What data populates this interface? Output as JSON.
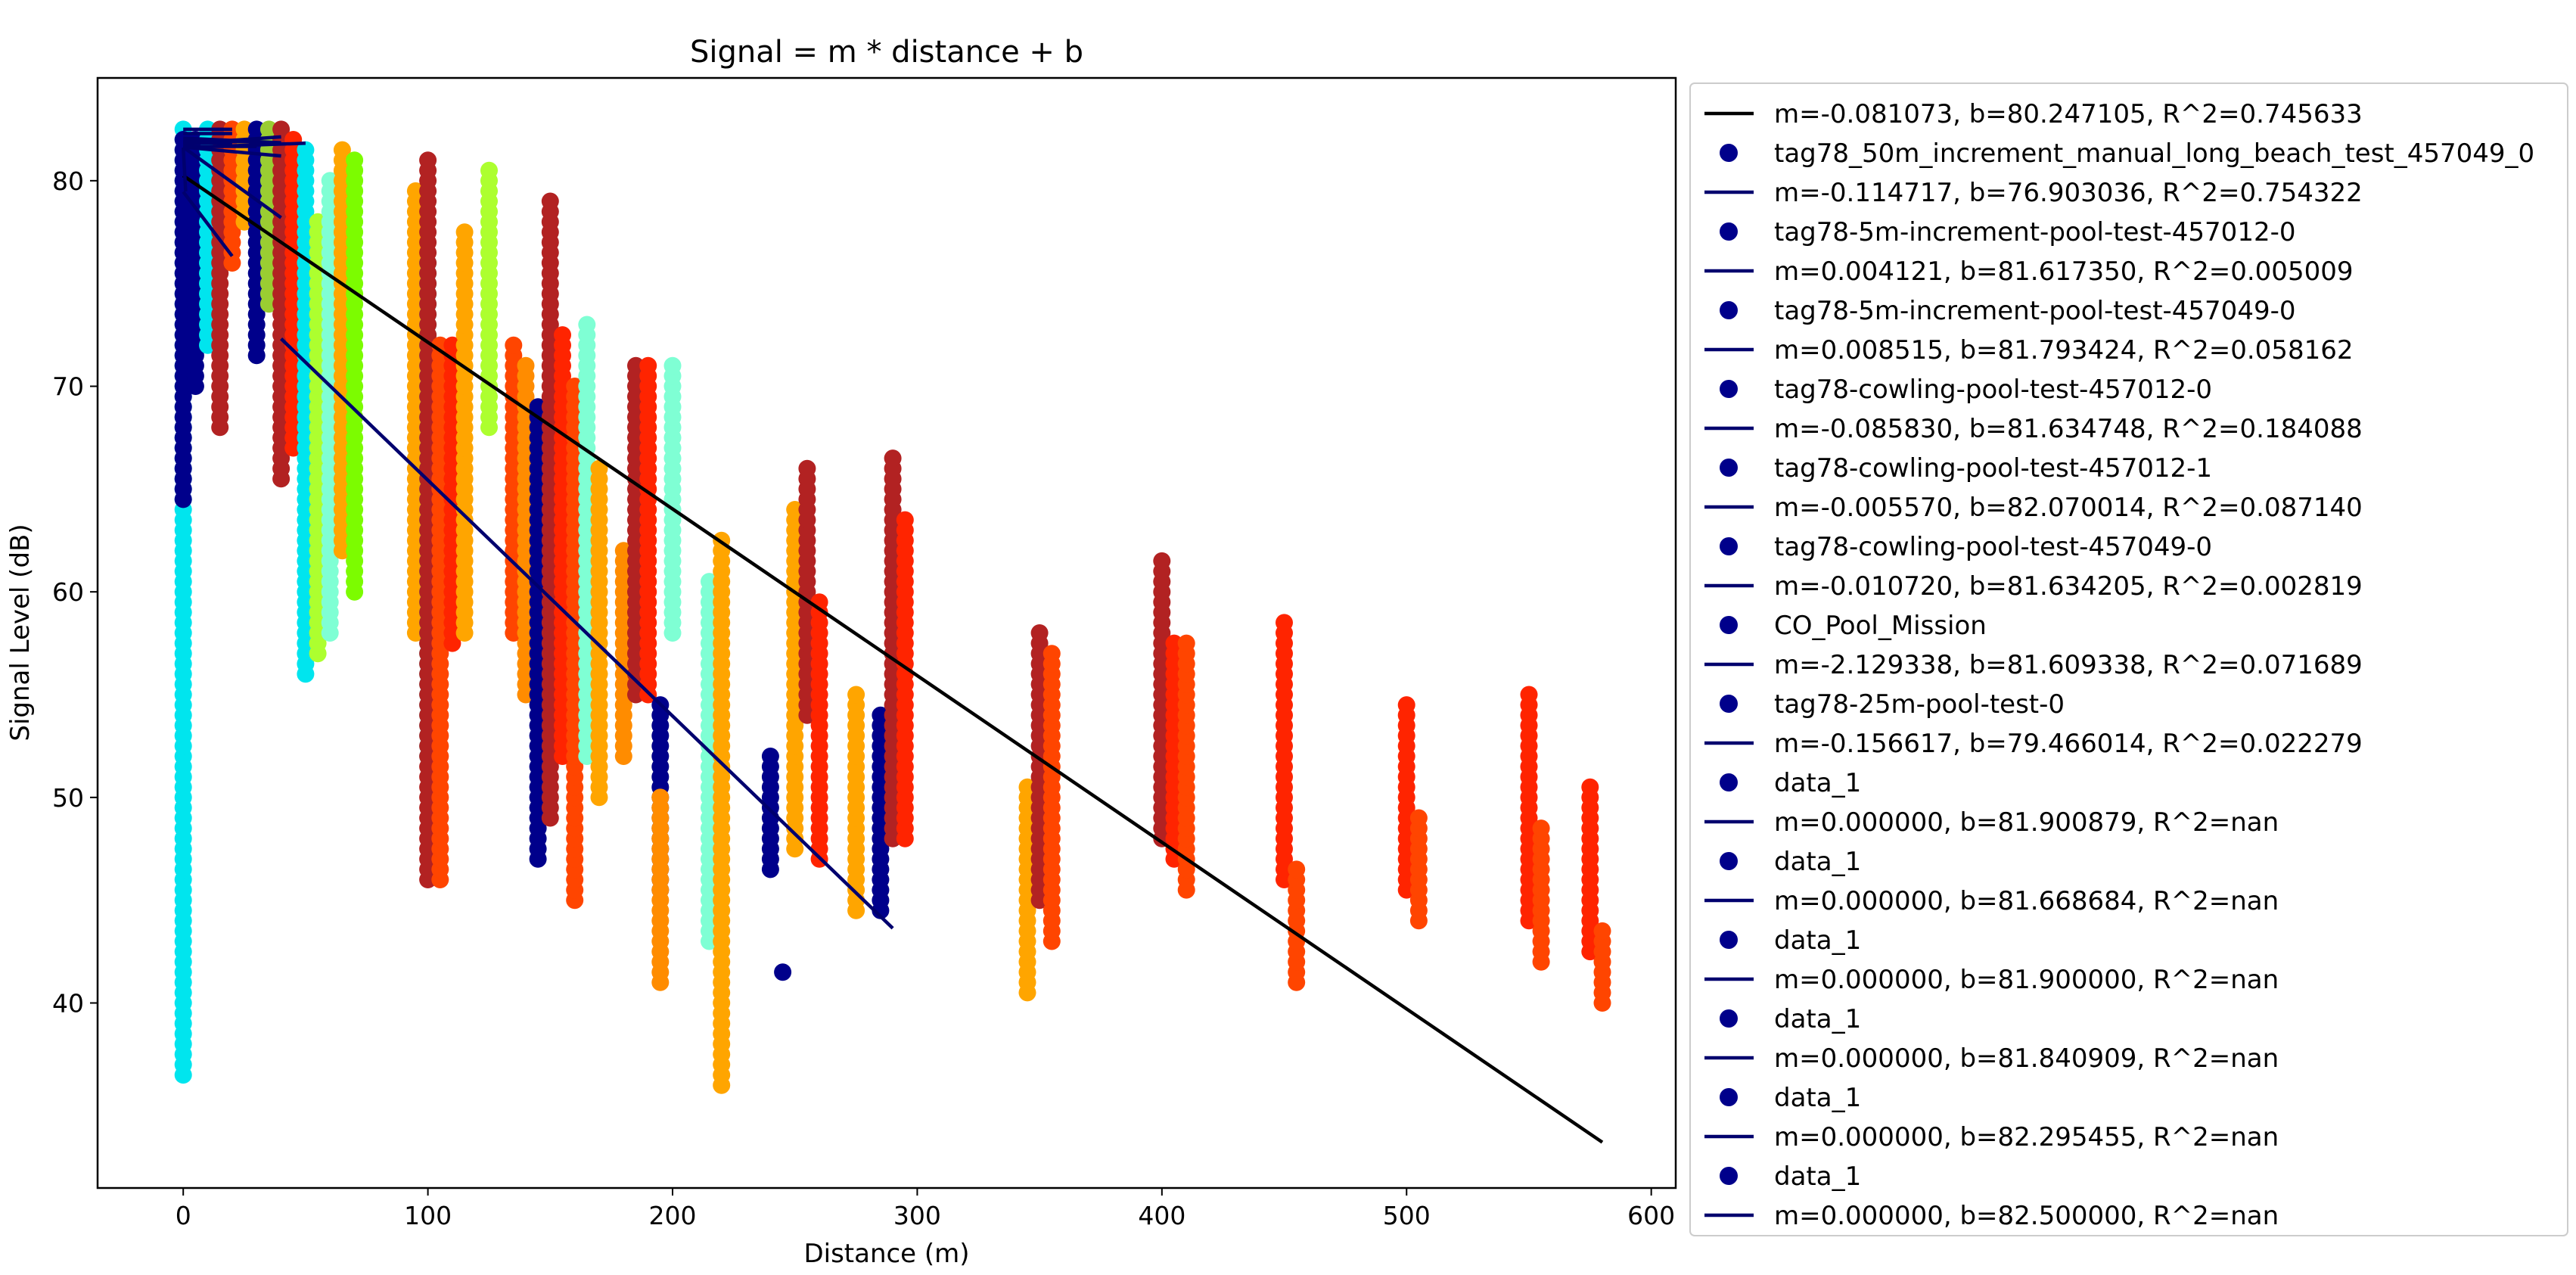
{
  "chart_data": {
    "type": "scatter",
    "title": "Signal = m * distance + b",
    "xlabel": "Distance (m)",
    "ylabel": "Signal Level (dB)",
    "xlim": [
      -35,
      610
    ],
    "ylim": [
      31,
      85
    ],
    "xticks": [
      0,
      100,
      200,
      300,
      400,
      500,
      600
    ],
    "yticks": [
      40,
      50,
      60,
      70,
      80
    ],
    "grid": false,
    "legend_position": "outside-right",
    "legend": [
      {
        "kind": "line",
        "label": "m=-0.081073, b=80.247105, R^2=0.745633",
        "color": "#000000"
      },
      {
        "kind": "point",
        "label": "tag78_50m_increment_manual_long_beach_test_457049_0",
        "color": "#00008b"
      },
      {
        "kind": "line",
        "label": "m=-0.114717, b=76.903036, R^2=0.754322",
        "color": "#00006e"
      },
      {
        "kind": "point",
        "label": "tag78-5m-increment-pool-test-457012-0",
        "color": "#00008b"
      },
      {
        "kind": "line",
        "label": "m=0.004121, b=81.617350, R^2=0.005009",
        "color": "#00006e"
      },
      {
        "kind": "point",
        "label": "tag78-5m-increment-pool-test-457049-0",
        "color": "#00008b"
      },
      {
        "kind": "line",
        "label": "m=0.008515, b=81.793424, R^2=0.058162",
        "color": "#00006e"
      },
      {
        "kind": "point",
        "label": "tag78-cowling-pool-test-457012-0",
        "color": "#00008b"
      },
      {
        "kind": "line",
        "label": "m=-0.085830, b=81.634748, R^2=0.184088",
        "color": "#00006e"
      },
      {
        "kind": "point",
        "label": "tag78-cowling-pool-test-457012-1",
        "color": "#00008b"
      },
      {
        "kind": "line",
        "label": "m=-0.005570, b=82.070014, R^2=0.087140",
        "color": "#00006e"
      },
      {
        "kind": "point",
        "label": "tag78-cowling-pool-test-457049-0",
        "color": "#00008b"
      },
      {
        "kind": "line",
        "label": "m=-0.010720, b=81.634205, R^2=0.002819",
        "color": "#00006e"
      },
      {
        "kind": "point",
        "label": "CO_Pool_Mission",
        "color": "#00008b"
      },
      {
        "kind": "line",
        "label": "m=-2.129338, b=81.609338, R^2=0.071689",
        "color": "#00006e"
      },
      {
        "kind": "point",
        "label": "tag78-25m-pool-test-0",
        "color": "#00008b"
      },
      {
        "kind": "line",
        "label": "m=-0.156617, b=79.466014, R^2=0.022279",
        "color": "#00006e"
      },
      {
        "kind": "point",
        "label": "data_1",
        "color": "#00008b"
      },
      {
        "kind": "line",
        "label": "m=0.000000, b=81.900879, R^2=nan",
        "color": "#00006e"
      },
      {
        "kind": "point",
        "label": "data_1",
        "color": "#00008b"
      },
      {
        "kind": "line",
        "label": "m=0.000000, b=81.668684, R^2=nan",
        "color": "#00006e"
      },
      {
        "kind": "point",
        "label": "data_1",
        "color": "#00008b"
      },
      {
        "kind": "line",
        "label": "m=0.000000, b=81.900000, R^2=nan",
        "color": "#00006e"
      },
      {
        "kind": "point",
        "label": "data_1",
        "color": "#00008b"
      },
      {
        "kind": "line",
        "label": "m=0.000000, b=81.840909, R^2=nan",
        "color": "#00006e"
      },
      {
        "kind": "point",
        "label": "data_1",
        "color": "#00008b"
      },
      {
        "kind": "line",
        "label": "m=0.000000, b=82.295455, R^2=nan",
        "color": "#00006e"
      },
      {
        "kind": "point",
        "label": "data_1",
        "color": "#00008b"
      },
      {
        "kind": "line",
        "label": "m=0.000000, b=82.500000, R^2=nan",
        "color": "#00006e"
      }
    ],
    "fit_lines": [
      {
        "m": -0.081073,
        "b": 80.247105,
        "x": [
          0,
          580
        ],
        "color": "#000000"
      },
      {
        "m": -0.114717,
        "b": 76.903036,
        "x": [
          40,
          290
        ],
        "color": "#00006e"
      },
      {
        "m": 0.004121,
        "b": 81.61735,
        "x": [
          0,
          50
        ],
        "color": "#00006e"
      },
      {
        "m": 0.008515,
        "b": 81.793424,
        "x": [
          0,
          40
        ],
        "color": "#00006e"
      },
      {
        "m": -0.08583,
        "b": 81.634748,
        "x": [
          0,
          40
        ],
        "color": "#00006e"
      },
      {
        "m": -0.00557,
        "b": 82.070014,
        "x": [
          0,
          40
        ],
        "color": "#00006e"
      },
      {
        "m": -0.01072,
        "b": 81.634205,
        "x": [
          0,
          40
        ],
        "color": "#00006e"
      },
      {
        "m": -2.129338,
        "b": 81.609338,
        "x": [
          0,
          1
        ],
        "color": "#00006e"
      },
      {
        "m": -0.156617,
        "b": 79.466014,
        "x": [
          0,
          20
        ],
        "color": "#00006e"
      },
      {
        "m": 0,
        "b": 81.900879,
        "x": [
          0,
          30
        ],
        "color": "#00006e"
      },
      {
        "m": 0,
        "b": 81.668684,
        "x": [
          0,
          30
        ],
        "color": "#00006e"
      },
      {
        "m": 0,
        "b": 81.9,
        "x": [
          0,
          20
        ],
        "color": "#00006e"
      },
      {
        "m": 0,
        "b": 81.840909,
        "x": [
          0,
          20
        ],
        "color": "#00006e"
      },
      {
        "m": 0,
        "b": 82.295455,
        "x": [
          0,
          20
        ],
        "color": "#00006e"
      },
      {
        "m": 0,
        "b": 82.5,
        "x": [
          0,
          20
        ],
        "color": "#00006e"
      }
    ],
    "point_columns": [
      {
        "x": 0,
        "y": [
          36.5,
          82.5
        ],
        "color": "#00e5ee"
      },
      {
        "x": 0,
        "y": [
          64.5,
          82
        ],
        "color": "#00008b"
      },
      {
        "x": 5,
        "y": [
          70,
          82
        ],
        "color": "#00008b"
      },
      {
        "x": 10,
        "y": [
          72,
          82.5
        ],
        "color": "#00e5ee"
      },
      {
        "x": 15,
        "y": [
          68,
          82.5
        ],
        "color": "#b22222"
      },
      {
        "x": 20,
        "y": [
          76,
          82.5
        ],
        "color": "#ff4500"
      },
      {
        "x": 25,
        "y": [
          78,
          82.5
        ],
        "color": "#ffa500"
      },
      {
        "x": 30,
        "y": [
          71.5,
          82.5
        ],
        "color": "#00008b"
      },
      {
        "x": 35,
        "y": [
          74,
          82.5
        ],
        "color": "#9acd32"
      },
      {
        "x": 40,
        "y": [
          65.5,
          82.5
        ],
        "color": "#b22222"
      },
      {
        "x": 45,
        "y": [
          67,
          82
        ],
        "color": "#ff2400"
      },
      {
        "x": 50,
        "y": [
          56,
          81.5
        ],
        "color": "#00e5ee"
      },
      {
        "x": 55,
        "y": [
          57,
          78
        ],
        "color": "#adff2f"
      },
      {
        "x": 60,
        "y": [
          58,
          80
        ],
        "color": "#7fffd4"
      },
      {
        "x": 65,
        "y": [
          62,
          81.5
        ],
        "color": "#ffa500"
      },
      {
        "x": 70,
        "y": [
          60,
          81
        ],
        "color": "#7cfc00"
      },
      {
        "x": 95,
        "y": [
          58,
          79.5
        ],
        "color": "#ffa500"
      },
      {
        "x": 100,
        "y": [
          52,
          76
        ],
        "color": "#00e5ee"
      },
      {
        "x": 100,
        "y": [
          46,
          81
        ],
        "color": "#b22222"
      },
      {
        "x": 105,
        "y": [
          46,
          72
        ],
        "color": "#ff4500"
      },
      {
        "x": 110,
        "y": [
          57.5,
          72
        ],
        "color": "#ff2400"
      },
      {
        "x": 115,
        "y": [
          58,
          77.5
        ],
        "color": "#ffa500"
      },
      {
        "x": 125,
        "y": [
          68,
          80.5
        ],
        "color": "#adff2f"
      },
      {
        "x": 135,
        "y": [
          58,
          72
        ],
        "color": "#ff4500"
      },
      {
        "x": 140,
        "y": [
          55,
          71
        ],
        "color": "#ff8c00"
      },
      {
        "x": 145,
        "y": [
          47,
          69
        ],
        "color": "#00008b"
      },
      {
        "x": 150,
        "y": [
          49,
          79
        ],
        "color": "#b22222"
      },
      {
        "x": 155,
        "y": [
          52,
          72.5
        ],
        "color": "#ff2400"
      },
      {
        "x": 160,
        "y": [
          45,
          70
        ],
        "color": "#ff4500"
      },
      {
        "x": 165,
        "y": [
          52,
          73
        ],
        "color": "#7fffd4"
      },
      {
        "x": 170,
        "y": [
          50,
          66
        ],
        "color": "#ffa500"
      },
      {
        "x": 180,
        "y": [
          52,
          62
        ],
        "color": "#ff8c00"
      },
      {
        "x": 185,
        "y": [
          55,
          71
        ],
        "color": "#b22222"
      },
      {
        "x": 190,
        "y": [
          55,
          71
        ],
        "color": "#ff2400"
      },
      {
        "x": 195,
        "y": [
          45.5,
          54.5
        ],
        "color": "#00008b"
      },
      {
        "x": 195,
        "y": [
          41,
          50
        ],
        "color": "#ff8c00"
      },
      {
        "x": 200,
        "y": [
          58,
          71
        ],
        "color": "#7fffd4"
      },
      {
        "x": 215,
        "y": [
          43,
          60.5
        ],
        "color": "#7fffd4"
      },
      {
        "x": 220,
        "y": [
          36,
          62.5
        ],
        "color": "#ffa500"
      },
      {
        "x": 240,
        "y": [
          46.5,
          52
        ],
        "color": "#00008b"
      },
      {
        "x": 245,
        "y": [
          41.5,
          41.5
        ],
        "color": "#00008b"
      },
      {
        "x": 250,
        "y": [
          47.5,
          64
        ],
        "color": "#ffa500"
      },
      {
        "x": 255,
        "y": [
          54,
          66
        ],
        "color": "#b22222"
      },
      {
        "x": 260,
        "y": [
          47,
          59.5
        ],
        "color": "#ff2400"
      },
      {
        "x": 275,
        "y": [
          44.5,
          55
        ],
        "color": "#ffa500"
      },
      {
        "x": 285,
        "y": [
          44.5,
          54
        ],
        "color": "#00008b"
      },
      {
        "x": 290,
        "y": [
          48,
          66.5
        ],
        "color": "#b22222"
      },
      {
        "x": 295,
        "y": [
          48,
          63.5
        ],
        "color": "#ff2400"
      },
      {
        "x": 345,
        "y": [
          40.5,
          50.5
        ],
        "color": "#ffa500"
      },
      {
        "x": 350,
        "y": [
          45,
          58
        ],
        "color": "#b22222"
      },
      {
        "x": 355,
        "y": [
          43,
          57
        ],
        "color": "#ff4500"
      },
      {
        "x": 400,
        "y": [
          48,
          61.5
        ],
        "color": "#b22222"
      },
      {
        "x": 405,
        "y": [
          47,
          57.5
        ],
        "color": "#ff2400"
      },
      {
        "x": 410,
        "y": [
          45.5,
          57.5
        ],
        "color": "#ff4500"
      },
      {
        "x": 450,
        "y": [
          46,
          58.5
        ],
        "color": "#ff2400"
      },
      {
        "x": 455,
        "y": [
          41,
          46.5
        ],
        "color": "#ff4500"
      },
      {
        "x": 500,
        "y": [
          45.5,
          54.5
        ],
        "color": "#ff2400"
      },
      {
        "x": 505,
        "y": [
          44,
          49
        ],
        "color": "#ff4500"
      },
      {
        "x": 550,
        "y": [
          44,
          55
        ],
        "color": "#ff2400"
      },
      {
        "x": 555,
        "y": [
          42,
          48.5
        ],
        "color": "#ff4500"
      },
      {
        "x": 575,
        "y": [
          42.5,
          50.5
        ],
        "color": "#ff2400"
      },
      {
        "x": 580,
        "y": [
          40,
          43.5
        ],
        "color": "#ff4500"
      }
    ],
    "point_step": 0.5
  }
}
